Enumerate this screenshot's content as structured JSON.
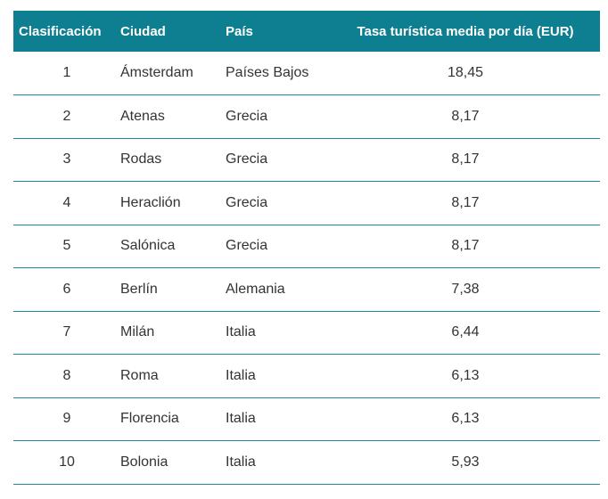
{
  "table": {
    "headers": [
      "Clasificación",
      "Ciudad",
      "País",
      "Tasa turística media por día (EUR)"
    ],
    "rows": [
      [
        "1",
        "Ámsterdam",
        "Países Bajos",
        "18,45"
      ],
      [
        "2",
        "Atenas",
        "Grecia",
        "8,17"
      ],
      [
        "3",
        "Rodas",
        "Grecia",
        "8,17"
      ],
      [
        "4",
        "Heraclión",
        "Grecia",
        "8,17"
      ],
      [
        "5",
        "Salónica",
        "Grecia",
        "8,17"
      ],
      [
        "6",
        "Berlín",
        "Alemania",
        "7,38"
      ],
      [
        "7",
        "Milán",
        "Italia",
        "6,44"
      ],
      [
        "8",
        "Roma",
        "Italia",
        "6,13"
      ],
      [
        "9",
        "Florencia",
        "Italia",
        "6,13"
      ],
      [
        "10",
        "Bolonia",
        "Italia",
        "5,93"
      ]
    ]
  },
  "colors": {
    "header_background": "#0d7f91",
    "header_text": "#ffffff",
    "row_divider": "#1b8a9b"
  }
}
